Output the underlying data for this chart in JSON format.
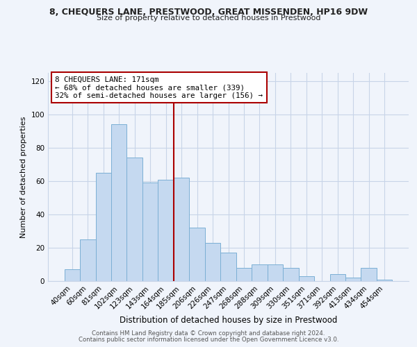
{
  "title": "8, CHEQUERS LANE, PRESTWOOD, GREAT MISSENDEN, HP16 9DW",
  "subtitle": "Size of property relative to detached houses in Prestwood",
  "xlabel": "Distribution of detached houses by size in Prestwood",
  "ylabel": "Number of detached properties",
  "bar_labels": [
    "40sqm",
    "60sqm",
    "81sqm",
    "102sqm",
    "123sqm",
    "143sqm",
    "164sqm",
    "185sqm",
    "206sqm",
    "226sqm",
    "247sqm",
    "268sqm",
    "288sqm",
    "309sqm",
    "330sqm",
    "351sqm",
    "371sqm",
    "392sqm",
    "413sqm",
    "434sqm",
    "454sqm"
  ],
  "bar_heights": [
    7,
    25,
    65,
    94,
    74,
    59,
    61,
    62,
    32,
    23,
    17,
    8,
    10,
    10,
    8,
    3,
    0,
    4,
    2,
    8,
    1
  ],
  "bar_color": "#c5d9f0",
  "bar_edge_color": "#7bafd4",
  "vline_color": "#aa0000",
  "vline_pos": 6.5,
  "annotation_line1": "8 CHEQUERS LANE: 171sqm",
  "annotation_line2": "← 68% of detached houses are smaller (339)",
  "annotation_line3": "32% of semi-detached houses are larger (156) →",
  "annotation_box_color": "#aa0000",
  "ylim": [
    0,
    125
  ],
  "yticks": [
    0,
    20,
    40,
    60,
    80,
    100,
    120
  ],
  "footer1": "Contains HM Land Registry data © Crown copyright and database right 2024.",
  "footer2": "Contains public sector information licensed under the Open Government Licence v3.0.",
  "bg_color": "#f0f4fb",
  "grid_color": "#c8d4e8"
}
